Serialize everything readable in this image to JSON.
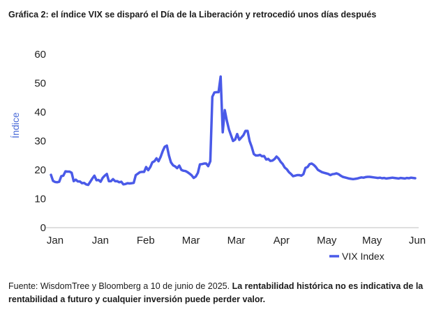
{
  "chart_data": {
    "type": "line",
    "title": "Gráfica 2: el índice VIX se disparó el Día de la Liberación y retrocedió unos días después",
    "xlabel": "",
    "ylabel": "Índice",
    "ylim": [
      0,
      60
    ],
    "yticks": [
      0,
      10,
      20,
      30,
      40,
      50,
      60
    ],
    "xtick_labels": [
      "Jan",
      "Jan",
      "Feb",
      "Mar",
      "Mar",
      "Apr",
      "May",
      "May",
      "Jun"
    ],
    "grid": false,
    "legend_position": "bottom-right",
    "line_color": "#4a5ae8",
    "series": [
      {
        "name": "VIX Index",
        "x": [
          0,
          1,
          2,
          3,
          4,
          5,
          6,
          7,
          8,
          9,
          10,
          11,
          12,
          13,
          14,
          15,
          16,
          17,
          18,
          19,
          20,
          21,
          22,
          23,
          24,
          25,
          26,
          27,
          28,
          29,
          30,
          31,
          32,
          33,
          34,
          35,
          36,
          37,
          38,
          39,
          40,
          41,
          42,
          43,
          44,
          45,
          46,
          47,
          48,
          49,
          50,
          51,
          52,
          53,
          54,
          55,
          56,
          57,
          58,
          59,
          60,
          61,
          62,
          63,
          64,
          65,
          66,
          67,
          68,
          69,
          70,
          71,
          72,
          73,
          74,
          75,
          76,
          77,
          78,
          79,
          80,
          81,
          82,
          83,
          84,
          85,
          86,
          87,
          88,
          89,
          90,
          91,
          92,
          93,
          94,
          95,
          96,
          97,
          98,
          99,
          100,
          101,
          102,
          103,
          104,
          105,
          106,
          107,
          108,
          109,
          110,
          111,
          112,
          113,
          114,
          115,
          116,
          117,
          118,
          119,
          120,
          121,
          122,
          123,
          124,
          125,
          126,
          127,
          128,
          129,
          130,
          131,
          132,
          133,
          134,
          135,
          136,
          137,
          138,
          139,
          140,
          141,
          142,
          143,
          144,
          145,
          146,
          147,
          148,
          149,
          150,
          151,
          152,
          153,
          154,
          155,
          156,
          157,
          158,
          159,
          160,
          161,
          162,
          163,
          164,
          165,
          166,
          167,
          168,
          169,
          170,
          171,
          172,
          173,
          174,
          175,
          176
        ],
        "values": [
          18.3,
          16.2,
          15.8,
          15.7,
          15.9,
          17.8,
          18.0,
          19.5,
          19.4,
          19.4,
          19.0,
          16.1,
          16.6,
          16.0,
          16.0,
          15.4,
          15.5,
          15.0,
          14.8,
          15.9,
          17.0,
          18.0,
          16.4,
          16.5,
          15.9,
          17.2,
          18.0,
          18.6,
          16.1,
          16.1,
          16.8,
          16.1,
          16.1,
          15.7,
          15.9,
          15.0,
          15.1,
          15.4,
          15.3,
          15.4,
          15.5,
          18.2,
          18.7,
          19.2,
          19.3,
          19.3,
          21.0,
          19.9,
          21.0,
          22.6,
          23.0,
          24.0,
          23.0,
          24.5,
          26.5,
          28.0,
          28.4,
          25.0,
          22.6,
          21.6,
          21.2,
          20.6,
          21.5,
          20.0,
          19.7,
          19.6,
          19.2,
          18.7,
          18.1,
          17.2,
          17.7,
          19.0,
          21.9,
          22.0,
          22.2,
          22.2,
          21.3,
          23.0,
          45.3,
          46.8,
          46.9,
          46.9,
          52.3,
          33.0,
          40.7,
          37.0,
          34.0,
          32.0,
          30.0,
          30.5,
          32.4,
          30.4,
          31.2,
          32.0,
          33.5,
          33.5,
          30.0,
          28.0,
          25.5,
          25.0,
          25.0,
          25.2,
          24.7,
          24.8,
          23.6,
          23.8,
          23.1,
          23.2,
          23.7,
          24.6,
          23.9,
          22.8,
          22.0,
          20.8,
          20.2,
          19.2,
          18.6,
          17.8,
          18.0,
          18.2,
          18.2,
          18.0,
          18.5,
          20.7,
          21.0,
          22.0,
          22.2,
          21.7,
          21.0,
          20.0,
          19.6,
          19.2,
          19.0,
          18.8,
          18.6,
          18.2,
          18.5,
          18.6,
          18.8,
          18.5,
          18.0,
          17.6,
          17.4,
          17.2,
          17.0,
          16.9,
          16.8,
          16.9,
          17.0,
          17.2,
          17.4,
          17.3,
          17.5,
          17.6,
          17.6,
          17.5,
          17.4,
          17.3,
          17.2,
          17.3,
          17.1,
          17.2,
          17.0,
          17.1,
          17.2,
          17.3,
          17.2,
          17.1,
          17.0,
          17.2,
          17.1,
          17.0,
          17.2,
          17.1,
          17.3,
          17.2,
          17.1
        ]
      }
    ]
  },
  "footer": {
    "source": "Fuente: WisdomTree y Bloomberg a 10 de junio de 2025.",
    "disclaimer": "La rentabilidad histórica no es indicativa de la rentabilidad a futuro y cualquier inversión puede perder valor."
  }
}
